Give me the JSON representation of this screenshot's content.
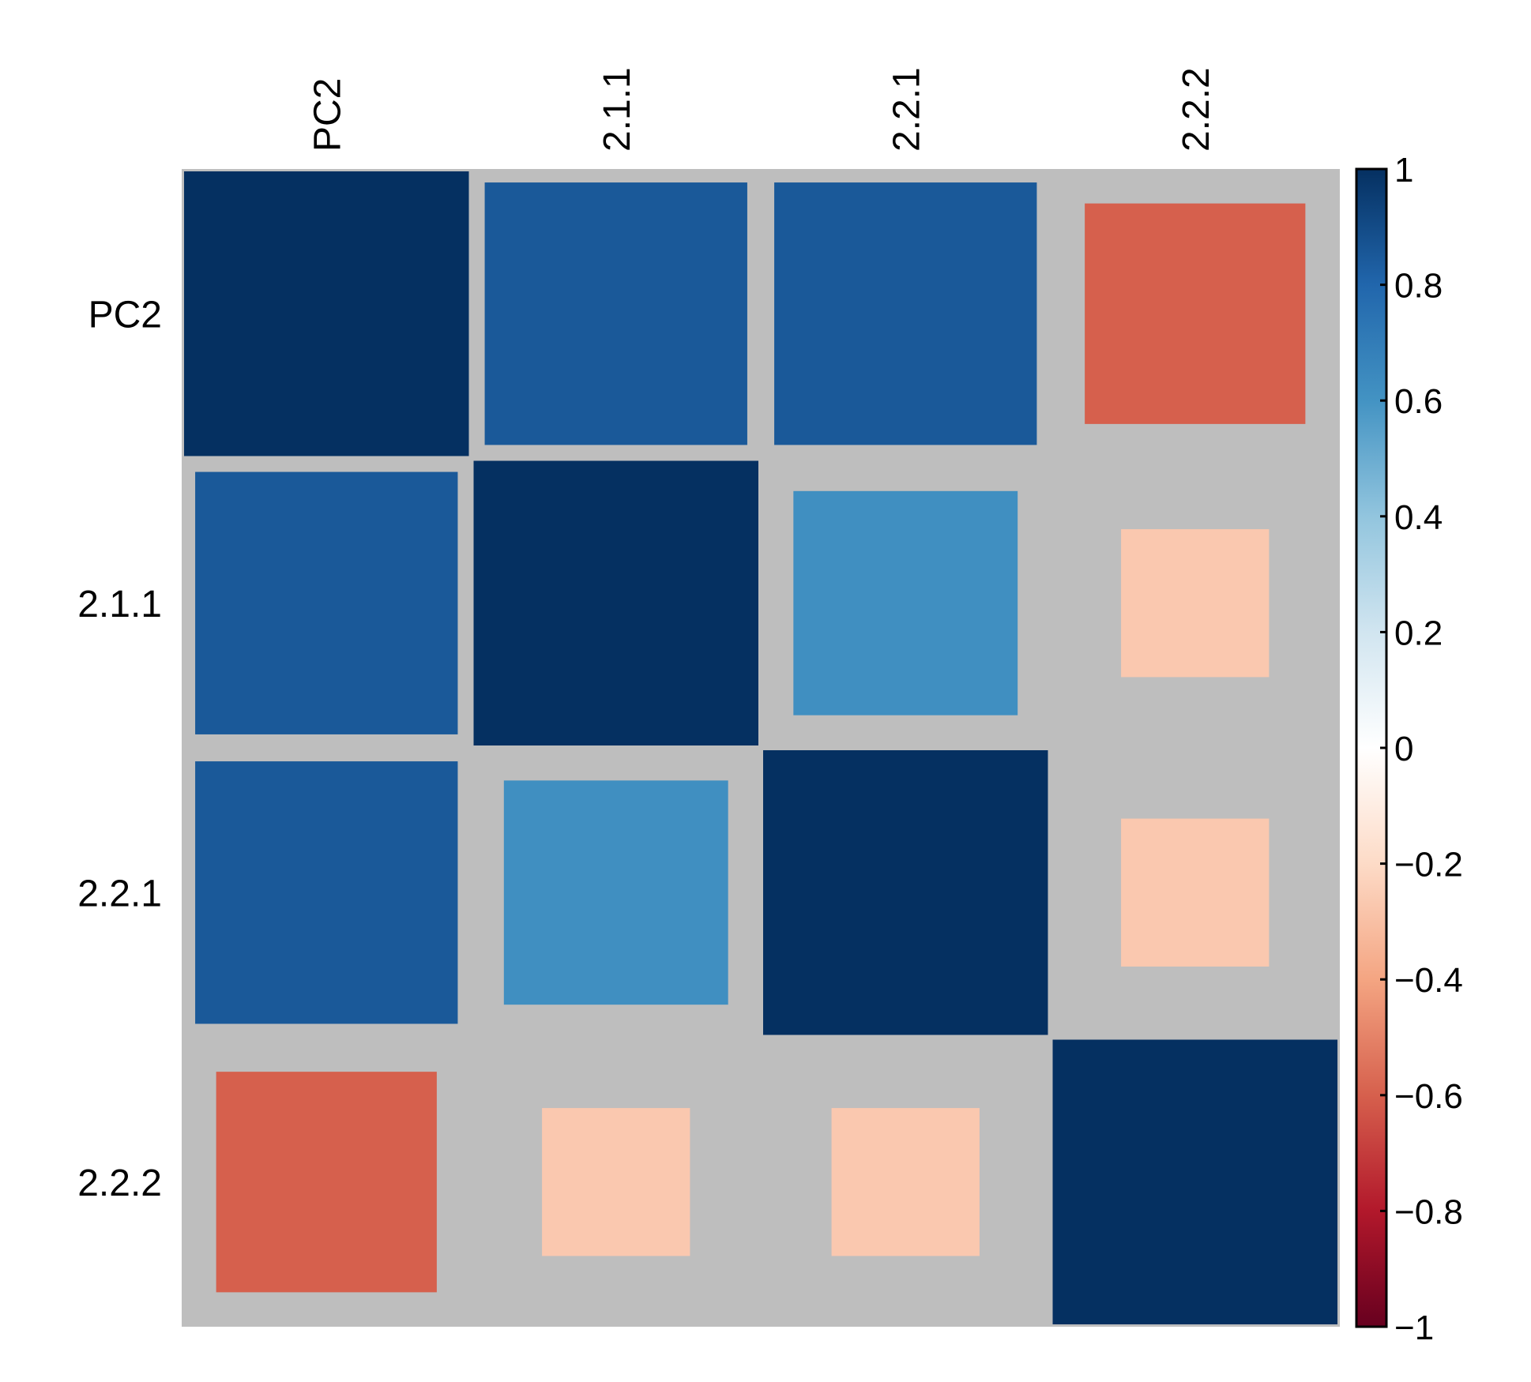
{
  "chart_data": {
    "type": "heatmap",
    "style": "square-size-scaled correlation matrix",
    "variables": [
      "PC2",
      "2.1.1",
      "2.2.1",
      "2.2.2"
    ],
    "row_labels": [
      "PC2",
      "2.1.1",
      "2.2.1",
      "2.2.2"
    ],
    "col_labels": [
      "PC2",
      "2.1.1",
      "2.2.1",
      "2.2.2"
    ],
    "matrix": [
      [
        1.0,
        0.85,
        0.85,
        -0.6
      ],
      [
        0.85,
        1.0,
        0.62,
        -0.27
      ],
      [
        0.85,
        0.62,
        1.0,
        -0.27
      ],
      [
        -0.6,
        -0.27,
        -0.27,
        1.0
      ]
    ],
    "colorbar": {
      "range": [
        -1,
        1
      ],
      "ticks": [
        1,
        0.8,
        0.6,
        0.4,
        0.2,
        0,
        -0.2,
        -0.4,
        -0.6,
        -0.8,
        -1
      ],
      "tick_labels": [
        "1",
        "0.8",
        "0.6",
        "0.4",
        "0.2",
        "0",
        "−0.2",
        "−0.4",
        "−0.6",
        "−0.8",
        "−1"
      ],
      "colors_high_to_low": [
        "#053061",
        "#2166ac",
        "#4393c3",
        "#92c5de",
        "#d1e5f0",
        "#ffffff",
        "#fddbc7",
        "#f4a582",
        "#d6604d",
        "#b2182b",
        "#67001f"
      ]
    },
    "background_color": "#bebebe",
    "title": "",
    "xlabel": "",
    "ylabel": ""
  }
}
